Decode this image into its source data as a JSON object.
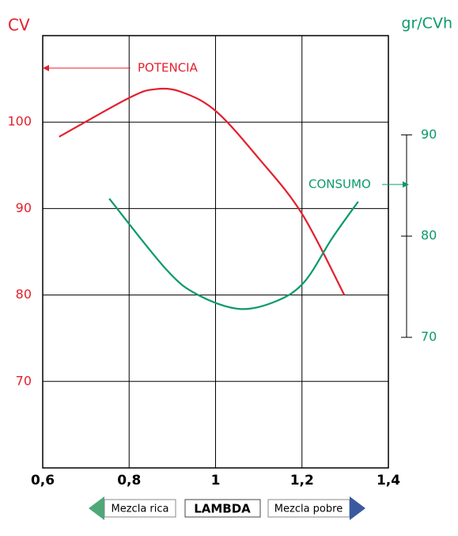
{
  "chart_data": {
    "type": "line",
    "ylabel": "CV",
    "y2label": "gr/CVh",
    "xlabel": "LAMBDA",
    "annotations": [
      "Mezcla rica",
      "Mezcla pobre"
    ],
    "xlim": [
      0.6,
      1.4
    ],
    "xticks": [
      {
        "value": 0.6,
        "label": "0,6"
      },
      {
        "value": 0.8,
        "label": "0,8"
      },
      1,
      {
        "value": 1.2,
        "label": "1,2"
      },
      {
        "value": 1.4,
        "label": "1,4"
      }
    ],
    "ylim": [
      60,
      110
    ],
    "yticks": [
      70,
      80,
      90,
      100
    ],
    "y2lim": [
      57.1,
      99.8
    ],
    "y2ticks": [
      70,
      80,
      90
    ],
    "grid": true,
    "series": [
      {
        "name": "POTENCIA",
        "color": "#e3202e",
        "x": [
          0.638,
          0.8,
          0.86,
          0.92,
          1.0,
          1.1,
          1.2,
          1.298
        ],
        "values": [
          98.3,
          102.8,
          103.8,
          103.5,
          101.3,
          95.8,
          89.4,
          80
        ]
      },
      {
        "name": "CONSUMO",
        "color": "#0b9a6a",
        "axis": "y2",
        "x": [
          0.754,
          0.886,
          0.959,
          1.056,
          1.142,
          1.206,
          1.27,
          1.33
        ],
        "values": [
          83.7,
          76.7,
          74.2,
          72.8,
          73.6,
          75.5,
          79.8,
          83.4
        ]
      }
    ]
  }
}
